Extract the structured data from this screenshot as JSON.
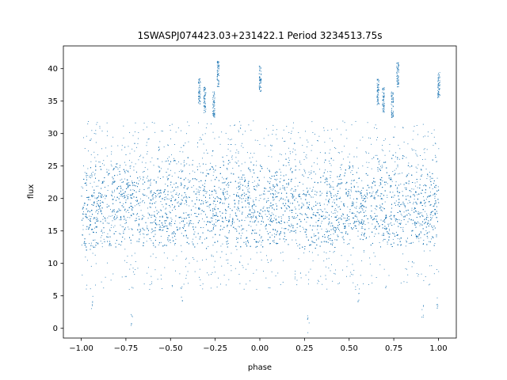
{
  "chart_data": {
    "type": "scatter",
    "title": "1SWASPJ074423.03+231422.1 Period 3234513.75s",
    "xlabel": "phase",
    "ylabel": "flux",
    "xlim": [
      -1.1,
      1.1
    ],
    "ylim": [
      -1.5,
      43.5
    ],
    "x_ticks": [
      -1.0,
      -0.75,
      -0.5,
      -0.25,
      0.0,
      0.25,
      0.5,
      0.75,
      1.0
    ],
    "x_tick_labels": [
      "−1.00",
      "−0.75",
      "−0.50",
      "−0.25",
      "0.00",
      "0.25",
      "0.50",
      "0.75",
      "1.00"
    ],
    "y_ticks": [
      0,
      5,
      10,
      15,
      20,
      25,
      30,
      35,
      40
    ],
    "y_tick_labels": [
      "0",
      "5",
      "10",
      "15",
      "20",
      "25",
      "30",
      "35",
      "40"
    ],
    "grid": false,
    "marker_color": "#1f77b4",
    "phase_range": [
      -1.0,
      1.0
    ],
    "main_band": {
      "center": 20,
      "spread": 3.2
    },
    "high_clusters": [
      {
        "x": -0.34,
        "y": 36.5
      },
      {
        "x": -0.31,
        "y": 35.2
      },
      {
        "x": -0.26,
        "y": 34.5
      },
      {
        "x": -0.235,
        "y": 39.2
      },
      {
        "x": 0.0,
        "y": 38.5
      },
      {
        "x": 0.66,
        "y": 36.5
      },
      {
        "x": 0.69,
        "y": 35.2
      },
      {
        "x": 0.74,
        "y": 34.5
      },
      {
        "x": 0.77,
        "y": 39.2
      },
      {
        "x": 1.0,
        "y": 37.5
      }
    ],
    "low_points": [
      {
        "x": -0.94,
        "y": 4.0
      },
      {
        "x": -0.72,
        "y": 1.0
      },
      {
        "x": -0.44,
        "y": 5.0
      },
      {
        "x": 0.27,
        "y": 0.8
      },
      {
        "x": 0.55,
        "y": 5.0
      },
      {
        "x": 0.91,
        "y": 3.0
      },
      {
        "x": 0.99,
        "y": 3.5
      }
    ]
  }
}
